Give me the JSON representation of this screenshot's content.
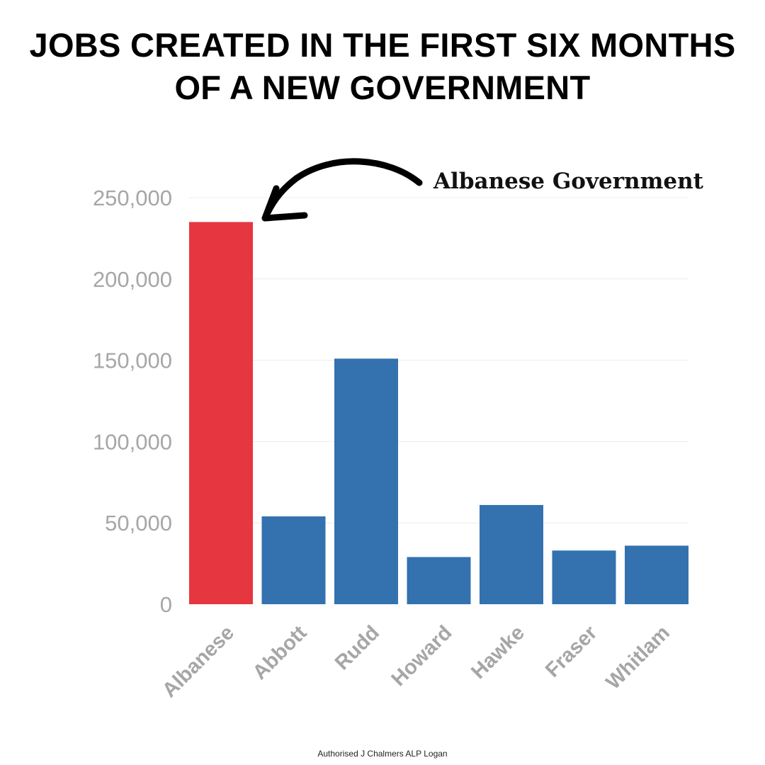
{
  "title": {
    "line1": "JOBS CREATED IN THE FIRST SIX MONTHS",
    "line2": "OF A NEW GOVERNMENT"
  },
  "annotation": {
    "text": "Albanese Government"
  },
  "footer": {
    "text": "Authorised J Chalmers ALP Logan"
  },
  "chart_data": {
    "type": "bar",
    "title": "JOBS CREATED IN THE FIRST SIX MONTHS OF A NEW GOVERNMENT",
    "xlabel": "",
    "ylabel": "",
    "categories": [
      "Albanese",
      "Abbott",
      "Rudd",
      "Howard",
      "Hawke",
      "Fraser",
      "Whitlam"
    ],
    "values": [
      235000,
      54000,
      151000,
      29000,
      61000,
      33000,
      36000
    ],
    "bar_colors": [
      "#e63640",
      "#3372ae",
      "#3372ae",
      "#3372ae",
      "#3372ae",
      "#3372ae",
      "#3372ae"
    ],
    "ylim": [
      0,
      250000
    ],
    "yticks": [
      0,
      50000,
      100000,
      150000,
      200000,
      250000
    ],
    "ytick_labels": [
      "0",
      "50,000",
      "100,000",
      "150,000",
      "200,000",
      "250,000"
    ],
    "grid": true,
    "legend": "none",
    "highlight": "Albanese"
  }
}
